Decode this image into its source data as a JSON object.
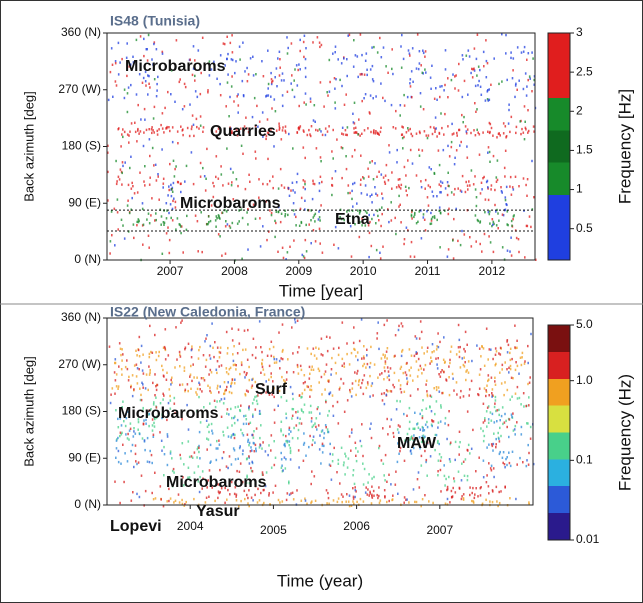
{
  "chart_data": [
    {
      "type": "scatter",
      "title": "IS48 (Tunisia)",
      "y_label": "Back azimuth [deg]",
      "x_label": "Time [year]",
      "xlim": [
        2006.02,
        2012.67
      ],
      "xticks": [
        2007,
        2008,
        2009,
        2010,
        2011,
        2012
      ],
      "ylim": [
        0,
        360
      ],
      "yticks": [
        {
          "value": 0,
          "label": "0 (N)"
        },
        {
          "value": 90,
          "label": "90 (E)"
        },
        {
          "value": 180,
          "label": "180 (S)"
        },
        {
          "value": 270,
          "label": "270 (W)"
        },
        {
          "value": 360,
          "label": "360 (N)"
        }
      ],
      "reference_lines": [
        79,
        46
      ],
      "annotations": [
        "Microbaroms",
        "Quarries",
        "Microbaroms",
        "Etna"
      ],
      "colorbar": {
        "label": "Frequency [Hz]",
        "lim": [
          0.1,
          3
        ],
        "log": false,
        "ticks": [
          0.5,
          1,
          1.5,
          2,
          2.5,
          3
        ],
        "colors": [
          "#1f3fe0",
          "#1f3fe0",
          "#178a2a",
          "#0f6a1f",
          "#178a2a",
          "#e01e1e",
          "#e01e1e"
        ]
      }
    },
    {
      "type": "scatter",
      "title": "IS22 (New Caledonia, France)",
      "y_label": "Back azimuth [deg]",
      "x_label": "Time (year)",
      "xlim": [
        2003.0,
        2008.12
      ],
      "xticks": [
        2004,
        2005,
        2006,
        2007
      ],
      "ylim": [
        0,
        360
      ],
      "yticks": [
        {
          "value": 0,
          "label": "0 (N)"
        },
        {
          "value": 90,
          "label": "90 (E)"
        },
        {
          "value": 180,
          "label": "180 (S)"
        },
        {
          "value": 270,
          "label": "270 (W)"
        },
        {
          "value": 360,
          "label": "360 (N)"
        }
      ],
      "annotations": [
        "Surf",
        "Microbaroms",
        "MAW",
        "Microbaroms",
        "Yasur",
        "Lopevi"
      ],
      "colorbar": {
        "label": "Frequency (Hz)",
        "lim": [
          0.01,
          5
        ],
        "log": true,
        "ticks": [
          {
            "value": 5,
            "label": "5.0"
          },
          {
            "value": 1,
            "label": "1.0"
          },
          0.1,
          0.01
        ],
        "colors": [
          "#2a1a8c",
          "#2c5ad8",
          "#2bb0e0",
          "#48d08a",
          "#d8e040",
          "#f0a020",
          "#d82020",
          "#7a1010"
        ]
      }
    }
  ]
}
